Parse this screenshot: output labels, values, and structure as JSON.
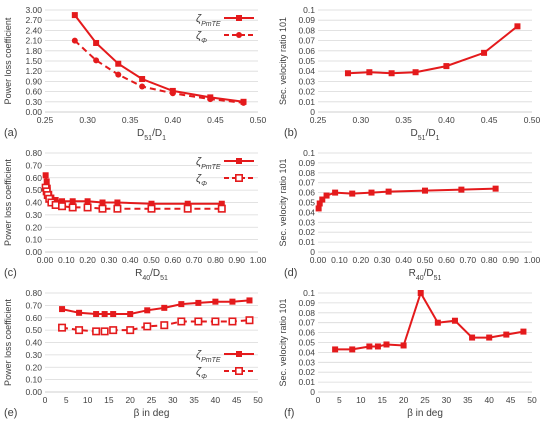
{
  "chart_data": [
    {
      "panel_label": "(a)",
      "type": "line",
      "xlabel": "D51/D1",
      "ylabel": "Power loss coefficient",
      "xlim": [
        0.25,
        0.5
      ],
      "ylim": [
        0.0,
        3.0
      ],
      "x_ticks": [
        "0.25",
        "0.30",
        "0.35",
        "0.40",
        "0.45",
        "0.50"
      ],
      "y_ticks": [
        "0.00",
        "0.30",
        "0.60",
        "0.90",
        "1.20",
        "1.50",
        "1.80",
        "2.10",
        "2.40",
        "2.70",
        "3.00"
      ],
      "grid": "horizontal",
      "legend_position": "top-right",
      "series": [
        {
          "name": "ζPmTE",
          "style": "solid-square",
          "x": [
            0.285,
            0.31,
            0.336,
            0.364,
            0.4,
            0.444,
            0.483
          ],
          "y": [
            2.85,
            2.03,
            1.42,
            0.97,
            0.62,
            0.43,
            0.3
          ]
        },
        {
          "name": "ζΦ",
          "style": "dashed-circle",
          "x": [
            0.285,
            0.31,
            0.336,
            0.364,
            0.4,
            0.444,
            0.483
          ],
          "y": [
            2.1,
            1.52,
            1.1,
            0.75,
            0.55,
            0.38,
            0.27
          ]
        }
      ]
    },
    {
      "panel_label": "(b)",
      "type": "line",
      "xlabel": "D51/D1",
      "ylabel": "Sec. velocity ratio 101",
      "xlim": [
        0.25,
        0.5
      ],
      "ylim": [
        0.0,
        0.1
      ],
      "x_ticks": [
        "0.25",
        "0.30",
        "0.35",
        "0.40",
        "0.45",
        "0.50"
      ],
      "y_ticks": [
        "0",
        "0.01",
        "0.02",
        "0.03",
        "0.04",
        "0.05",
        "0.06",
        "0.07",
        "0.08",
        "0.09",
        "0.1"
      ],
      "grid": "horizontal",
      "series": [
        {
          "name": "",
          "style": "solid-square",
          "x": [
            0.285,
            0.31,
            0.336,
            0.364,
            0.4,
            0.444,
            0.483
          ],
          "y": [
            0.038,
            0.039,
            0.038,
            0.039,
            0.045,
            0.058,
            0.084
          ]
        }
      ]
    },
    {
      "panel_label": "(c)",
      "type": "line",
      "xlabel": "R40/D51",
      "ylabel": "Power loss coefficient",
      "xlim": [
        0.0,
        1.0
      ],
      "ylim": [
        0.0,
        0.8
      ],
      "x_ticks": [
        "0.00",
        "0.10",
        "0.20",
        "0.30",
        "0.40",
        "0.50",
        "0.60",
        "0.70",
        "0.80",
        "0.90",
        "1.00"
      ],
      "y_ticks": [
        "0.00",
        "0.10",
        "0.20",
        "0.30",
        "0.40",
        "0.50",
        "0.60",
        "0.70",
        "0.80"
      ],
      "grid": "horizontal",
      "legend_position": "top-right",
      "series": [
        {
          "name": "ζPmTE",
          "style": "solid-square",
          "x": [
            0.003,
            0.008,
            0.013,
            0.02,
            0.03,
            0.05,
            0.08,
            0.13,
            0.2,
            0.27,
            0.34,
            0.5,
            0.67,
            0.83
          ],
          "y": [
            0.62,
            0.57,
            0.52,
            0.47,
            0.44,
            0.42,
            0.41,
            0.41,
            0.41,
            0.4,
            0.4,
            0.39,
            0.39,
            0.39
          ]
        },
        {
          "name": "ζΦ",
          "style": "dashed-open-square",
          "x": [
            0.003,
            0.008,
            0.013,
            0.02,
            0.03,
            0.05,
            0.08,
            0.13,
            0.2,
            0.27,
            0.34,
            0.5,
            0.67,
            0.83
          ],
          "y": [
            0.52,
            0.49,
            0.46,
            0.43,
            0.4,
            0.38,
            0.37,
            0.36,
            0.36,
            0.35,
            0.35,
            0.35,
            0.35,
            0.35
          ]
        }
      ]
    },
    {
      "panel_label": "(d)",
      "type": "line",
      "xlabel": "R40/D51",
      "ylabel": "Sec. velocity ratio 101",
      "xlim": [
        0.0,
        1.0
      ],
      "ylim": [
        0.0,
        0.1
      ],
      "x_ticks": [
        "0.00",
        "0.10",
        "0.20",
        "0.30",
        "0.40",
        "0.50",
        "0.60",
        "0.70",
        "0.80",
        "0.90",
        "1.00"
      ],
      "y_ticks": [
        "0",
        "0.01",
        "0.02",
        "0.03",
        "0.04",
        "0.05",
        "0.06",
        "0.07",
        "0.08",
        "0.09",
        "0.1"
      ],
      "grid": "horizontal",
      "series": [
        {
          "name": "",
          "style": "solid-square",
          "x": [
            0.003,
            0.008,
            0.02,
            0.04,
            0.08,
            0.16,
            0.25,
            0.33,
            0.5,
            0.67,
            0.83
          ],
          "y": [
            0.044,
            0.049,
            0.053,
            0.057,
            0.06,
            0.059,
            0.06,
            0.061,
            0.062,
            0.063,
            0.064
          ]
        }
      ]
    },
    {
      "panel_label": "(e)",
      "type": "line",
      "xlabel": "β in deg",
      "ylabel": "Power loss coefficient",
      "xlim": [
        0,
        50
      ],
      "ylim": [
        0.0,
        0.8
      ],
      "x_ticks": [
        "0",
        "5",
        "10",
        "15",
        "20",
        "25",
        "30",
        "35",
        "40",
        "45",
        "50"
      ],
      "y_ticks": [
        "0.00",
        "0.10",
        "0.20",
        "0.30",
        "0.40",
        "0.50",
        "0.60",
        "0.70",
        "0.80"
      ],
      "grid": "horizontal",
      "legend_position": "bottom-right",
      "series": [
        {
          "name": "ζPmTE",
          "style": "solid-square",
          "x": [
            4,
            8,
            12,
            14,
            16,
            20,
            24,
            28,
            32,
            36,
            40,
            44,
            48
          ],
          "y": [
            0.67,
            0.64,
            0.63,
            0.63,
            0.63,
            0.63,
            0.66,
            0.68,
            0.71,
            0.72,
            0.73,
            0.73,
            0.74
          ]
        },
        {
          "name": "ζΦ",
          "style": "dashed-open-square",
          "x": [
            4,
            8,
            12,
            14,
            16,
            20,
            24,
            28,
            32,
            36,
            40,
            44,
            48
          ],
          "y": [
            0.52,
            0.5,
            0.49,
            0.49,
            0.5,
            0.5,
            0.53,
            0.54,
            0.57,
            0.57,
            0.57,
            0.57,
            0.58
          ]
        }
      ]
    },
    {
      "panel_label": "(f)",
      "type": "line",
      "xlabel": "β in deg",
      "ylabel": "Sec. velocity ratio 101",
      "xlim": [
        0,
        50
      ],
      "ylim": [
        0.0,
        0.1
      ],
      "x_ticks": [
        "0",
        "5",
        "10",
        "15",
        "20",
        "25",
        "30",
        "35",
        "40",
        "45",
        "50"
      ],
      "y_ticks": [
        "0",
        "0.01",
        "0.02",
        "0.03",
        "0.04",
        "0.05",
        "0.06",
        "0.07",
        "0.08",
        "0.09",
        "0.1"
      ],
      "grid": "horizontal",
      "series": [
        {
          "name": "",
          "style": "solid-square",
          "x": [
            4,
            8,
            12,
            14,
            16,
            20,
            24,
            28,
            32,
            36,
            40,
            44,
            48
          ],
          "y": [
            0.043,
            0.043,
            0.046,
            0.046,
            0.048,
            0.047,
            0.1,
            0.07,
            0.072,
            0.055,
            0.055,
            0.058,
            0.061
          ]
        }
      ]
    }
  ],
  "colors": {
    "series": "#e41a1c",
    "grid": "#d9d9d9",
    "text": "#404040"
  }
}
